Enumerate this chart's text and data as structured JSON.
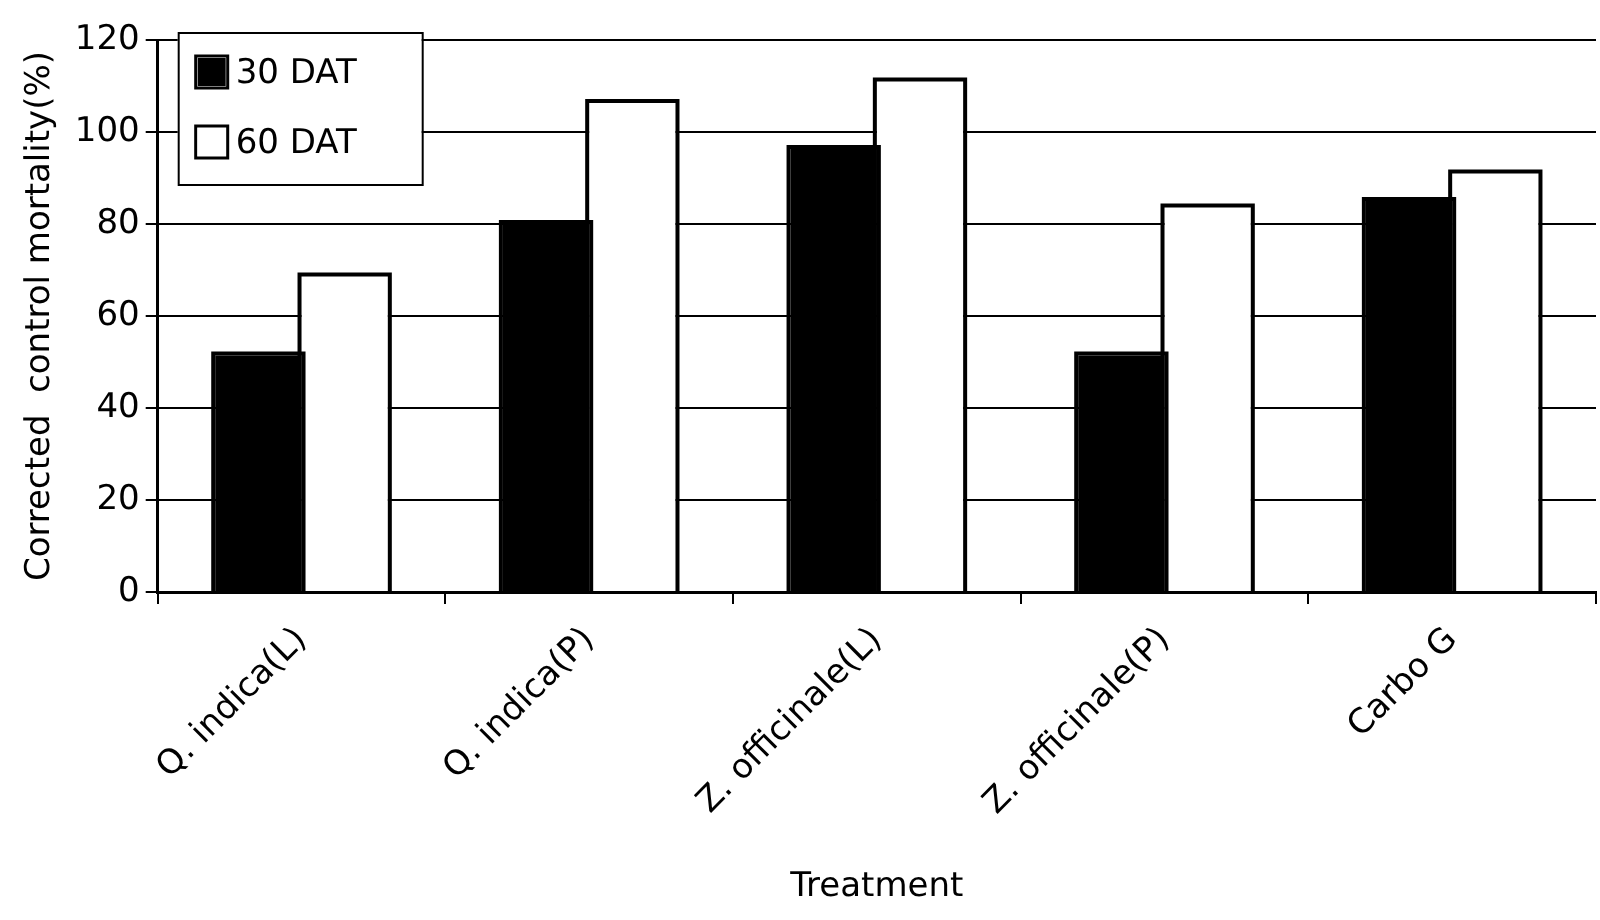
{
  "chart_data": {
    "type": "bar",
    "xlabel": "Treatment",
    "ylabel": "Corrected  control mortality(%)",
    "categories": [
      "Q. indica(L)",
      "Q. indica(P)",
      "Z. officinale(L)",
      "Z. officinale(P)",
      "Carbo G"
    ],
    "series": [
      {
        "name": "30 DAT",
        "color": "#000000",
        "values": [
          51.4,
          80,
          96.3,
          51.4,
          85
        ]
      },
      {
        "name": "60 DAT",
        "color": "#ffffff",
        "values": [
          68.6,
          106.3,
          111,
          83.6,
          91
        ]
      }
    ],
    "ylim": [
      0,
      120
    ],
    "yticks": [
      0,
      20,
      40,
      60,
      80,
      100,
      120
    ],
    "grid": "y",
    "legend": "top left"
  }
}
